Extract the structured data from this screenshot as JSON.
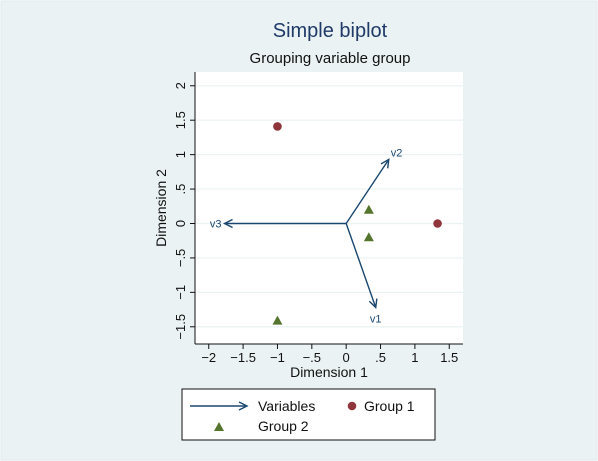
{
  "chart_data": {
    "type": "scatter",
    "title": "Simple biplot",
    "subtitle": "Grouping variable group",
    "xlabel": "Dimension 1",
    "ylabel": "Dimension 2",
    "xlim": [
      -2.2,
      1.7
    ],
    "ylim": [
      -1.75,
      2.2
    ],
    "x_ticks": [
      -2,
      -1.5,
      -1,
      -0.5,
      0,
      0.5,
      1,
      1.5
    ],
    "x_tick_labels": [
      "−2",
      "−1.5",
      "−1",
      "−.5",
      "0",
      ".5",
      "1",
      "1.5"
    ],
    "y_ticks": [
      -1.5,
      -1,
      -0.5,
      0,
      0.5,
      1,
      1.5,
      2
    ],
    "y_tick_labels": [
      "−1.5",
      "−1",
      "−.5",
      "0",
      ".5",
      "1",
      "1.5",
      "2"
    ],
    "grid": true,
    "legend_position": "bottom",
    "variables": [
      {
        "name": "v1",
        "x": 0.43,
        "y": -1.22
      },
      {
        "name": "v2",
        "x": 0.62,
        "y": 0.93
      },
      {
        "name": "v3",
        "x": -1.77,
        "y": 0
      }
    ],
    "series": [
      {
        "name": "Group 1",
        "marker": "circle",
        "color": "#90353b",
        "points": [
          {
            "x": -1.0,
            "y": 1.41
          },
          {
            "x": 1.33,
            "y": 0.0
          }
        ]
      },
      {
        "name": "Group 2",
        "marker": "triangle",
        "color": "#55752f",
        "points": [
          {
            "x": 0.33,
            "y": 0.2
          },
          {
            "x": 0.33,
            "y": -0.2
          },
          {
            "x": -1.0,
            "y": -1.41
          }
        ]
      }
    ],
    "legend": {
      "variables_label": "Variables",
      "group1_label": "Group 1",
      "group2_label": "Group 2"
    },
    "colors": {
      "outer_background": "#eaf2f3",
      "plot_background": "#ffffff",
      "arrow": "#1a476f",
      "title": "#1f3a68",
      "grid": "#eaf2f3"
    }
  }
}
